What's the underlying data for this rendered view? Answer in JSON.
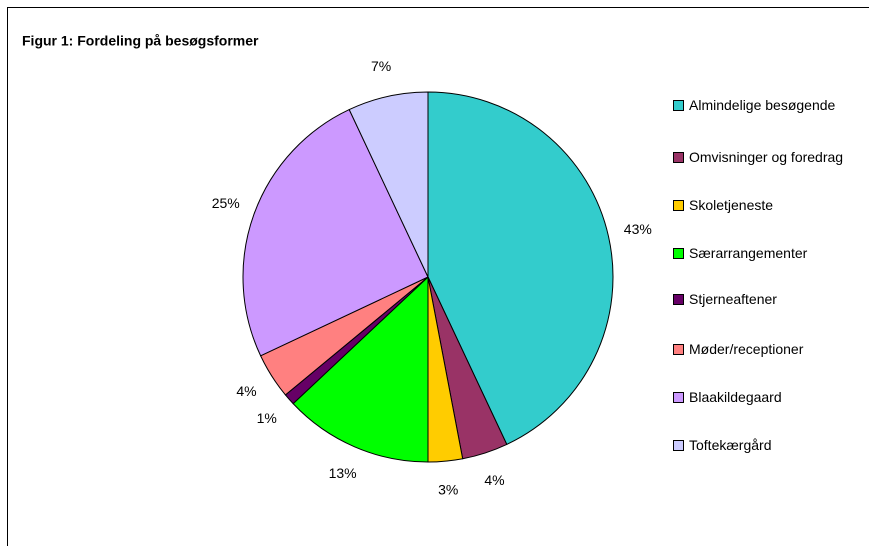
{
  "chart_data": {
    "type": "pie",
    "title": "Figur 1: Fordeling på besøgsformer",
    "categories": [
      "Almindelige besøgende",
      "Omvisninger og foredrag",
      "Skoletjeneste",
      "Særarrangementer",
      "Stjerneaftener",
      "Møder/receptioner",
      "Blaakildegaard",
      "Toftekærgård"
    ],
    "values": [
      43,
      4,
      3,
      13,
      1,
      4,
      25,
      7
    ],
    "value_labels": [
      "43%",
      "4%",
      "3%",
      "13%",
      "1%",
      "4%",
      "25%",
      "7%"
    ],
    "colors": [
      "#33cccc",
      "#993366",
      "#ffcc00",
      "#00ff00",
      "#660066",
      "#ff8080",
      "#cc99ff",
      "#ccccff"
    ],
    "legend": "right"
  }
}
